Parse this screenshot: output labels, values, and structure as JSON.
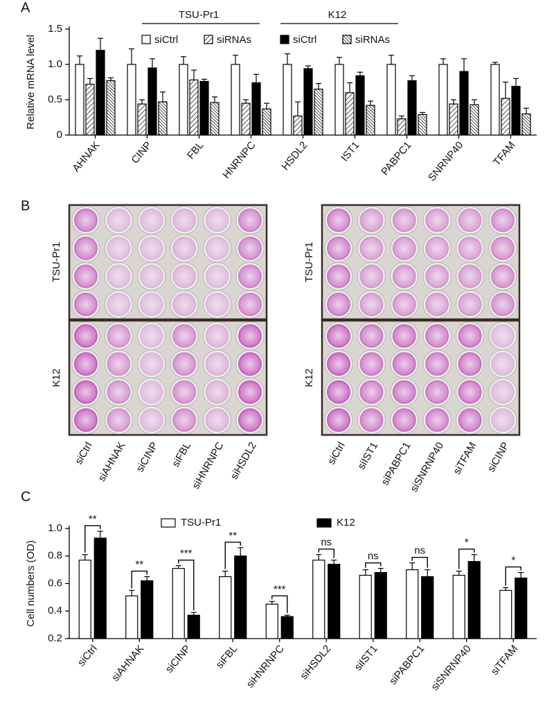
{
  "chart_data": [
    {
      "type": "bar",
      "panel": "A",
      "ylabel": "Relative mRNA level",
      "categories": [
        "AHNAK",
        "CINP",
        "FBL",
        "HNRNPC",
        "HSDL2",
        "IST1",
        "PABPC1",
        "SNRNP40",
        "TFAM"
      ],
      "groups": [
        {
          "name": "TSU-Pr1",
          "series": [
            {
              "name": "siCtrl",
              "color": "#ffffff",
              "pattern": "none",
              "values": [
                1.0,
                1.0,
                1.0,
                1.0,
                1.0,
                1.0,
                1.0,
                1.0,
                1.0
              ],
              "errors": [
                0.12,
                0.22,
                0.11,
                0.13,
                0.15,
                0.1,
                0.13,
                0.08,
                0.03
              ]
            },
            {
              "name": "siRNAs",
              "color": "#ffffff",
              "pattern": "hatch",
              "values": [
                0.72,
                0.44,
                0.78,
                0.45,
                0.27,
                0.6,
                0.23,
                0.44,
                0.52
              ],
              "errors": [
                0.08,
                0.06,
                0.14,
                0.05,
                0.2,
                0.14,
                0.04,
                0.06,
                0.23
              ]
            }
          ]
        },
        {
          "name": "K12",
          "series": [
            {
              "name": "siCtrl",
              "color": "#000000",
              "pattern": "none",
              "values": [
                1.2,
                0.95,
                0.76,
                0.74,
                0.94,
                0.84,
                0.77,
                0.9,
                0.69
              ],
              "errors": [
                0.17,
                0.13,
                0.03,
                0.12,
                0.04,
                0.05,
                0.07,
                0.18,
                0.11
              ]
            },
            {
              "name": "siRNAs",
              "color": "#ffffff",
              "pattern": "dense-hatch",
              "values": [
                0.77,
                0.47,
                0.46,
                0.37,
                0.65,
                0.42,
                0.29,
                0.43,
                0.3
              ],
              "errors": [
                0.04,
                0.14,
                0.08,
                0.08,
                0.08,
                0.06,
                0.03,
                0.07,
                0.08
              ]
            }
          ]
        }
      ],
      "ylim": [
        0,
        1.5
      ],
      "yticks": [
        0,
        0.5,
        {
          "value": 1,
          "label": "1.0"
        },
        1.5
      ],
      "grid": false
    },
    {
      "type": "plates",
      "panel": "B",
      "row_labels": [
        "TSU-Pr1",
        "K12"
      ],
      "plates": [
        {
          "columns": [
            "siCtrl",
            "siAHNAK",
            "siCINP",
            "siFBL",
            "siHNRNPC",
            "siHSDL2"
          ]
        },
        {
          "columns": [
            "siCtrl",
            "siIST1",
            "siPABPC1",
            "siSNRNP40",
            "siTFAM",
            "siCINP"
          ]
        }
      ]
    },
    {
      "type": "bar",
      "panel": "C",
      "ylabel": "Cell numbers (OD)",
      "categories": [
        "siCtrl",
        "siAHNAK",
        "siCINP",
        "siFBL",
        "siHNRNPC",
        "siHSDL2",
        "siIST1",
        "siPABPC1",
        "siSNRNP40",
        "siTFAM"
      ],
      "groups": [
        {
          "series": [
            {
              "name": "TSU-Pr1",
              "color": "#ffffff",
              "pattern": "none",
              "values": [
                0.77,
                0.51,
                0.71,
                0.65,
                0.45,
                0.77,
                0.66,
                0.7,
                0.66,
                0.55
              ],
              "errors": [
                0.04,
                0.04,
                0.02,
                0.04,
                0.02,
                0.04,
                0.04,
                0.05,
                0.03,
                0.02
              ]
            },
            {
              "name": "K12",
              "color": "#000000",
              "pattern": "none",
              "values": [
                0.93,
                0.62,
                0.37,
                0.8,
                0.36,
                0.74,
                0.68,
                0.65,
                0.76,
                0.64
              ],
              "errors": [
                0.05,
                0.03,
                0.02,
                0.06,
                0.01,
                0.03,
                0.03,
                0.05,
                0.05,
                0.04
              ]
            }
          ]
        }
      ],
      "significance": [
        "**",
        "**",
        "***",
        "**",
        "***",
        "ns",
        "ns",
        "ns",
        "*",
        "*"
      ],
      "ylim": [
        0.2,
        1.0
      ],
      "yticks": [
        0.2,
        0.4,
        0.6,
        0.8,
        {
          "value": 1,
          "label": "1.0"
        }
      ],
      "grid": false
    }
  ]
}
